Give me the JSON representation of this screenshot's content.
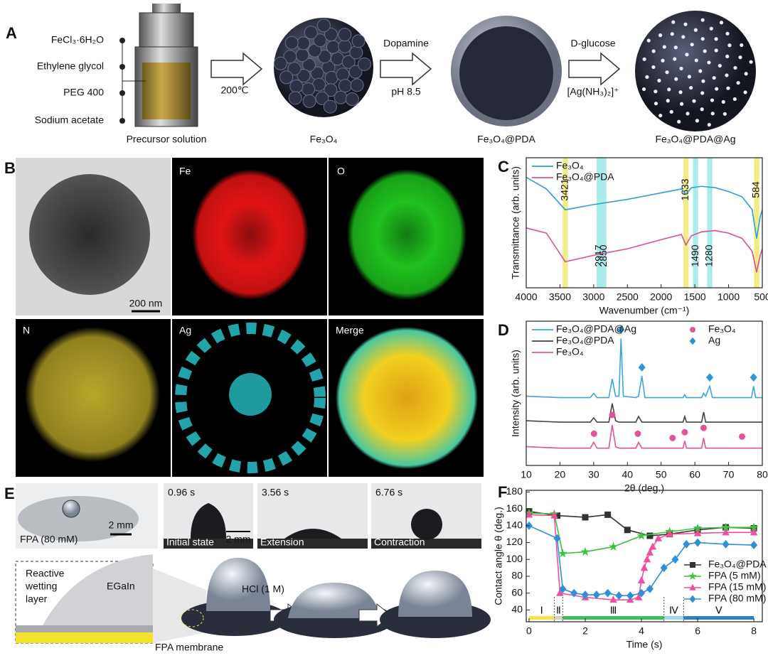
{
  "panel_labels": [
    "A",
    "B",
    "C",
    "D",
    "E",
    "F"
  ],
  "synthesis": {
    "precursors": [
      "FeCl₃·6H₂O",
      "Ethylene glycol",
      "PEG 400",
      "Sodium acetate"
    ],
    "precursor_caption": "Precursor solution",
    "step1_condition": "200℃",
    "product1": "Fe₃O₄",
    "step2_top": "Dopamine",
    "step2_bottom": "pH 8.5",
    "product2": "Fe₃O₄@PDA",
    "step3_top": "D-glucose",
    "step3_bottom": "[Ag(NH₃)₂]⁺",
    "product3": "Fe₃O₄@PDA@Ag"
  },
  "mapping": {
    "tiles": [
      "Fe",
      "O",
      "N",
      "Ag",
      "Merge"
    ],
    "scale_bar": "200 nm"
  },
  "wetting": {
    "photo_label": "FPA (80 mM)",
    "photo_scale_bar": "2 mm",
    "frames": [
      {
        "time": "0.96 s",
        "state": "Initial state"
      },
      {
        "time": "3.56 s",
        "state": "Extension"
      },
      {
        "time": "6.76 s",
        "state": "Contraction"
      }
    ],
    "frame_scale_bar": "2 mm",
    "layer_lines": [
      "Reactive",
      "wetting",
      "layer"
    ],
    "metal": "EGaIn",
    "membrane": "FPA membrane",
    "acid": "HCl (1 M)"
  },
  "chart_data": [
    {
      "type": "line",
      "xlabel": "Wavenumber (cm⁻¹)",
      "ylabel": "Transmittance (arb. units)",
      "xlim": [
        4000,
        500
      ],
      "xticks": [
        4000,
        3500,
        3000,
        2500,
        2000,
        1500,
        1000,
        500
      ],
      "ylim": [
        0,
        100
      ],
      "legend": "upper left",
      "x": [
        4000,
        3700,
        3421,
        3000,
        2500,
        2000,
        1700,
        1633,
        1550,
        1400,
        1200,
        1000,
        800,
        650,
        584,
        530,
        500
      ],
      "series": [
        {
          "name": "Fe₃O₄",
          "color": "#2e9fd6",
          "values": [
            85,
            76,
            60,
            64,
            68,
            73,
            76,
            72,
            77,
            78,
            77,
            74,
            70,
            60,
            38,
            55,
            60
          ]
        },
        {
          "name": "Fe₃O₄@PDA",
          "color": "#d94f9b",
          "values": [
            46,
            42,
            20,
            25,
            30,
            37,
            41,
            33,
            40,
            43,
            44,
            42,
            38,
            28,
            12,
            25,
            30
          ]
        }
      ],
      "bands": [
        {
          "label": "3421",
          "x": 3421,
          "color": "#f2ec86"
        },
        {
          "label": "2917",
          "x": 2917,
          "color": "#a9ecea"
        },
        {
          "label": "2850",
          "x": 2850,
          "color": "#a9ecea"
        },
        {
          "label": "1633",
          "x": 1633,
          "color": "#f2ec86"
        },
        {
          "label": "1490",
          "x": 1490,
          "color": "#a9ecea"
        },
        {
          "label": "1280",
          "x": 1280,
          "color": "#a9ecea"
        },
        {
          "label": "584",
          "x": 584,
          "color": "#f2ec86"
        }
      ]
    },
    {
      "type": "line",
      "xlabel": "2θ (deg.)",
      "ylabel": "Intensity (arb. units)",
      "xlim": [
        10,
        80
      ],
      "xticks": [
        10,
        20,
        30,
        40,
        50,
        60,
        70,
        80
      ],
      "ylim": [
        0,
        100
      ],
      "legend": "upper left",
      "marker_legend": "upper right",
      "x": [
        10,
        20,
        29,
        30,
        31,
        34.5,
        35.5,
        36.5,
        37.5,
        38.1,
        38.8,
        42.5,
        43.3,
        44.3,
        45.2,
        53,
        56.5,
        57,
        57.5,
        62,
        62.6,
        63.2,
        64.4,
        65.2,
        76.8,
        77.4,
        78,
        80
      ],
      "series": [
        {
          "name": "Fe₃O₄@PDA@Ag",
          "color": "#3aa6d8",
          "values": [
            48,
            47,
            47,
            50,
            47,
            47,
            60,
            48,
            48,
            88,
            48,
            47,
            48,
            62,
            47,
            47,
            47,
            49,
            47,
            47,
            50,
            48,
            55,
            47,
            47,
            55,
            47,
            47
          ]
        },
        {
          "name": "Fe₃O₄@PDA",
          "color": "#444444",
          "values": [
            31,
            30,
            30,
            33,
            30,
            30,
            43,
            31,
            30,
            30,
            30,
            30,
            34,
            30,
            30,
            30,
            30,
            34,
            30,
            30,
            37,
            30,
            30,
            30,
            30,
            30,
            30,
            30
          ]
        },
        {
          "name": "Fe₃O₄",
          "color": "#e0559a",
          "values": [
            13,
            12,
            12,
            16,
            12,
            12,
            28,
            13,
            12,
            12,
            12,
            12,
            16,
            12,
            12,
            12,
            12,
            17,
            12,
            12,
            19,
            12,
            12,
            12,
            12,
            12,
            12,
            12
          ]
        }
      ],
      "markers": [
        {
          "name": "Fe₃O₄",
          "shape": "circle",
          "color": "#e0559a",
          "x": [
            30.1,
            35.5,
            43.1,
            53.4,
            57,
            62.6,
            74
          ],
          "y": [
            22,
            35,
            22,
            19,
            23,
            26,
            20
          ]
        },
        {
          "name": "Ag",
          "shape": "diamond",
          "color": "#2f96d8",
          "x": [
            38.1,
            44.3,
            64.4,
            77.4
          ],
          "y": [
            94,
            68,
            61,
            61
          ]
        }
      ]
    },
    {
      "type": "line",
      "xlabel": "Time (s)",
      "ylabel": "Contact angle θ (deg.)",
      "xlim": [
        -0.1,
        8.3
      ],
      "xticks": [
        0,
        2,
        4,
        6,
        8
      ],
      "ylim": [
        26,
        182
      ],
      "yticks": [
        40,
        60,
        80,
        100,
        120,
        140,
        160,
        180
      ],
      "legend": "lower right",
      "series": [
        {
          "name": "Fe₃O₄@PDA",
          "color": "#333333",
          "marker": "square",
          "x": [
            0,
            1,
            2,
            2.8,
            3.5,
            4.3,
            5,
            6,
            7,
            8
          ],
          "values": [
            157,
            152,
            150,
            153,
            135,
            128,
            130,
            135,
            138,
            137
          ]
        },
        {
          "name": "FPA (5 mM)",
          "color": "#3cc33c",
          "marker": "star",
          "x": [
            0,
            0.9,
            1.2,
            2,
            3,
            4,
            5,
            6,
            7,
            8
          ],
          "values": [
            155,
            154,
            107,
            109,
            115,
            128,
            133,
            137,
            138,
            138
          ]
        },
        {
          "name": "FPA (15 mM)",
          "color": "#ef4f9e",
          "marker": "triangle",
          "x": [
            0,
            0.9,
            1.1,
            2,
            3,
            3.6,
            3.9,
            4,
            4.1,
            4.2,
            4.3,
            4.4,
            4.6,
            5,
            6,
            7,
            8
          ],
          "values": [
            153,
            152,
            60,
            55,
            52,
            52,
            55,
            75,
            90,
            100,
            108,
            115,
            125,
            130,
            131,
            132,
            132
          ]
        },
        {
          "name": "FPA (80 mM)",
          "color": "#2f8fd8",
          "marker": "diamond",
          "x": [
            0,
            1,
            1.2,
            1.6,
            2,
            2.4,
            2.8,
            3.2,
            3.6,
            4,
            4.3,
            4.8,
            5.2,
            5.6,
            6,
            7,
            8
          ],
          "values": [
            140,
            125,
            65,
            60,
            58,
            58,
            60,
            57,
            57,
            60,
            65,
            90,
            100,
            118,
            120,
            118,
            117
          ]
        }
      ],
      "phases": [
        {
          "label": "Ⅰ",
          "start": 0,
          "end": 0.9,
          "color": "#f3e64a"
        },
        {
          "label": "Ⅱ",
          "start": 0.9,
          "end": 1.2,
          "color": "#cfd6c0"
        },
        {
          "label": "Ⅲ",
          "start": 1.2,
          "end": 4.8,
          "color": "#3fbf5f"
        },
        {
          "label": "Ⅳ",
          "start": 4.8,
          "end": 5.5,
          "color": "#9fd6f0"
        },
        {
          "label": "Ⅴ",
          "start": 5.5,
          "end": 8,
          "color": "#2f7fc8"
        }
      ]
    }
  ]
}
